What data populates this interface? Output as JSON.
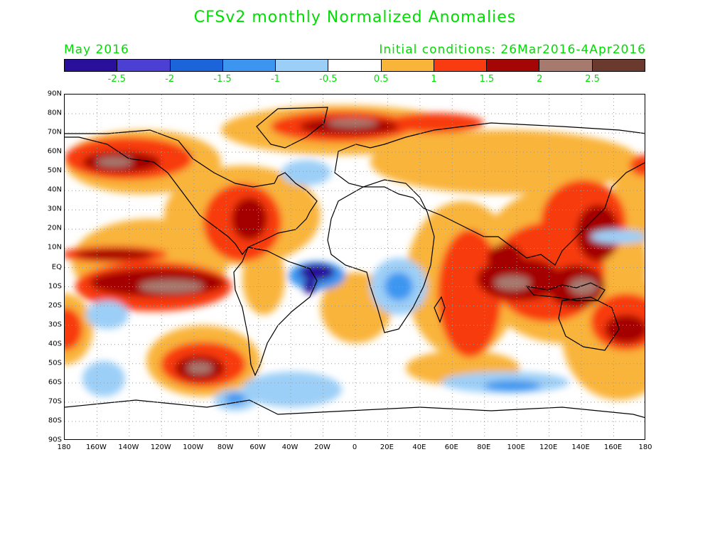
{
  "title": "CFSv2 monthly Normalized Anomalies",
  "month": "May 2016",
  "initial_conditions": "Initial conditions: 26Mar2016-4Apr2016",
  "colorbar": {
    "colors": [
      "#2a0f9a",
      "#4b3fd4",
      "#1b64d9",
      "#3c96f0",
      "#9ccff7",
      "#ffffff",
      "#f9b43a",
      "#f83b10",
      "#a40606",
      "#a77a70",
      "#6b3a2e"
    ],
    "tick_labels": [
      "-2.5",
      "-2",
      "-1.5",
      "-1",
      "-0.5",
      "0.5",
      "1",
      "1.5",
      "2",
      "2.5"
    ]
  },
  "lat_labels": [
    "90N",
    "80N",
    "70N",
    "60N",
    "50N",
    "40N",
    "30N",
    "20N",
    "10N",
    "EQ",
    "10S",
    "20S",
    "30S",
    "40S",
    "50S",
    "60S",
    "70S",
    "80S",
    "90S"
  ],
  "lon_labels": [
    "180",
    "160W",
    "140W",
    "120W",
    "100W",
    "80W",
    "60W",
    "40W",
    "20W",
    "0",
    "20E",
    "40E",
    "60E",
    "80E",
    "100E",
    "120E",
    "140E",
    "160E",
    "180"
  ]
}
